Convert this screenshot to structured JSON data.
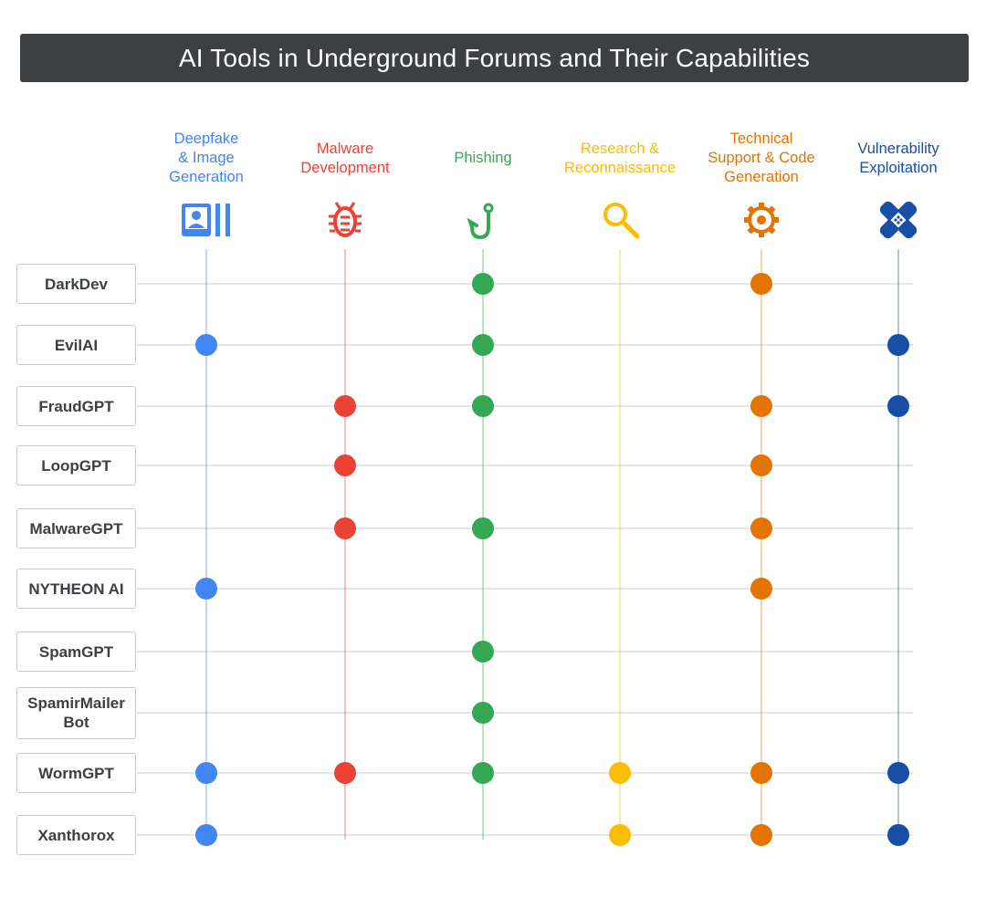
{
  "title": "AI Tools in Underground Forums and Their Capabilities",
  "categories": [
    {
      "label": "Deepfake\n& Image\nGeneration",
      "color": "#4285f4",
      "icon": "portrait-image-icon"
    },
    {
      "label": "Malware\nDevelopment",
      "color": "#ea4335",
      "icon": "bug-icon"
    },
    {
      "label": "Phishing",
      "color": "#34a853",
      "icon": "fishing-hook-icon"
    },
    {
      "label": "Research &\nReconnaissance",
      "color": "#fbbc04",
      "icon": "magnifier-icon"
    },
    {
      "label": "Technical\nSupport & Code\nGeneration",
      "color": "#e37400",
      "icon": "gear-icon"
    },
    {
      "label": "Vulnerability\nExploitation",
      "color": "#174ea6",
      "icon": "bandage-icon"
    }
  ],
  "tools": [
    {
      "name": "DarkDev",
      "capabilities": [
        0,
        0,
        1,
        0,
        1,
        0
      ]
    },
    {
      "name": "EvilAI",
      "capabilities": [
        1,
        0,
        1,
        0,
        0,
        1
      ]
    },
    {
      "name": "FraudGPT",
      "capabilities": [
        0,
        1,
        1,
        0,
        1,
        1
      ]
    },
    {
      "name": "LoopGPT",
      "capabilities": [
        0,
        1,
        0,
        0,
        1,
        0
      ]
    },
    {
      "name": "MalwareGPT",
      "capabilities": [
        0,
        1,
        1,
        0,
        1,
        0
      ]
    },
    {
      "name": "NYTHEON AI",
      "capabilities": [
        1,
        0,
        0,
        0,
        1,
        0
      ]
    },
    {
      "name": "SpamGPT",
      "capabilities": [
        0,
        0,
        1,
        0,
        0,
        0
      ]
    },
    {
      "name": "SpamirMailer\nBot",
      "capabilities": [
        0,
        0,
        1,
        0,
        0,
        0
      ]
    },
    {
      "name": "WormGPT",
      "capabilities": [
        1,
        1,
        1,
        1,
        1,
        1
      ]
    },
    {
      "name": "Xanthorox",
      "capabilities": [
        1,
        0,
        0,
        1,
        1,
        1
      ]
    }
  ]
}
